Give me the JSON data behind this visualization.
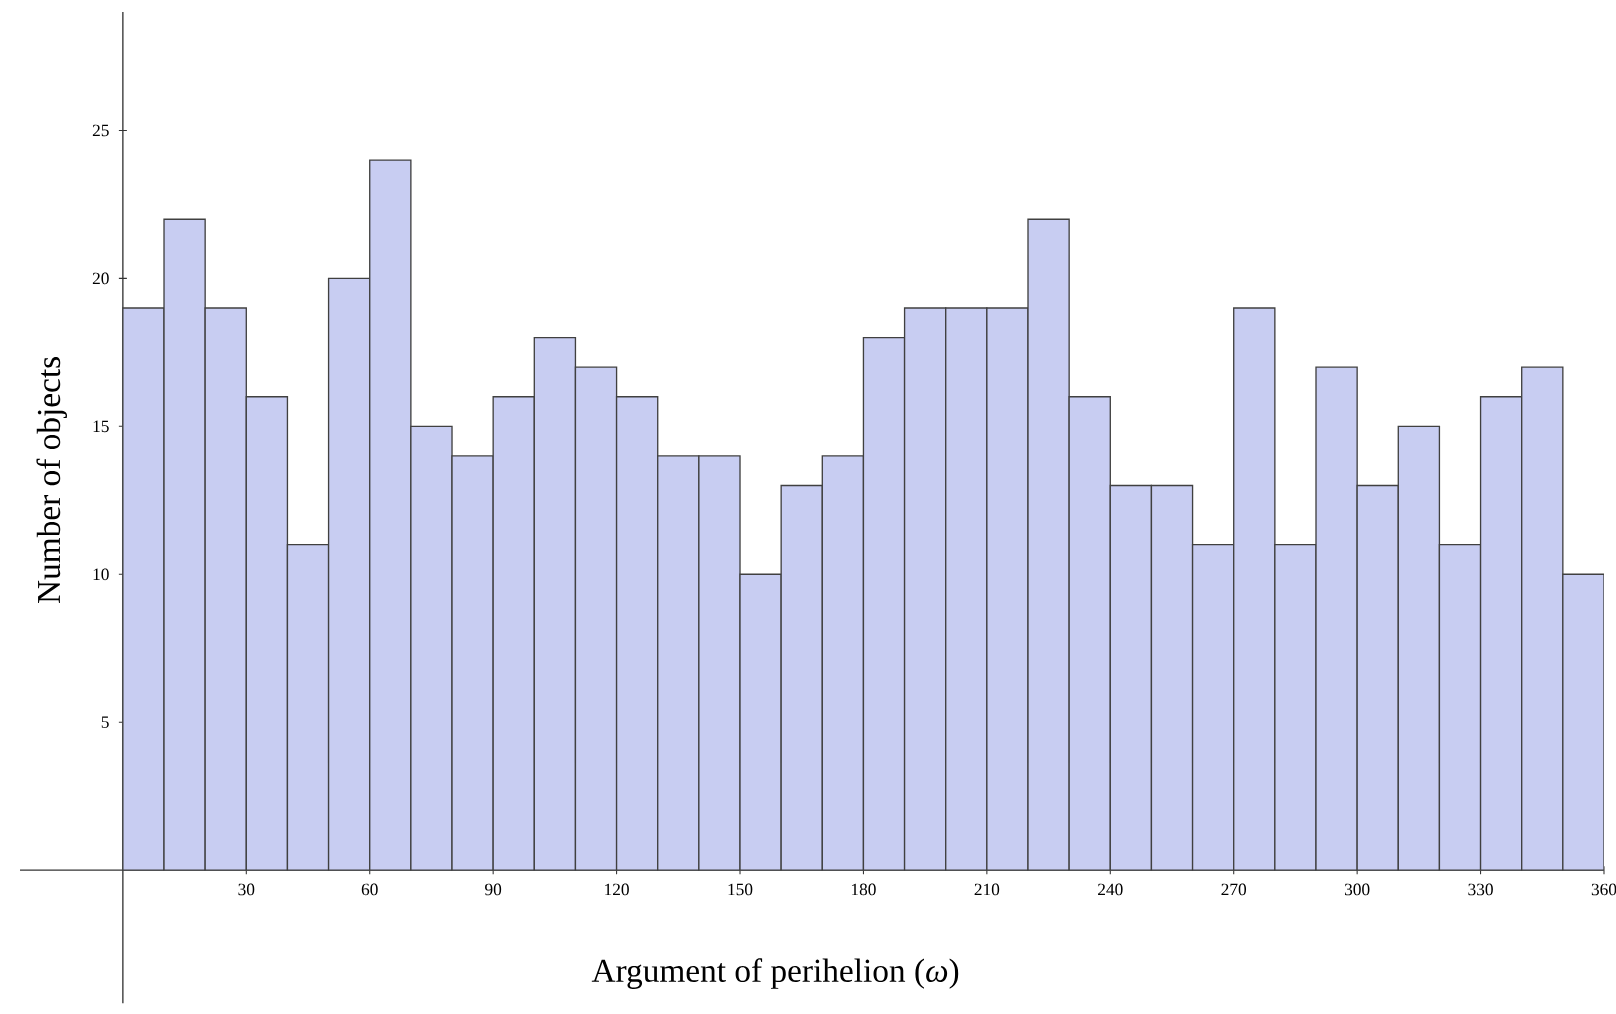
{
  "chart_data": {
    "type": "histogram",
    "xlabel": "Argument of perihelion (*ω*)",
    "ylabel": "Number of objects",
    "bins": [
      0,
      10,
      20,
      30,
      40,
      50,
      60,
      70,
      80,
      90,
      100,
      110,
      120,
      130,
      140,
      150,
      160,
      170,
      180,
      190,
      200,
      210,
      220,
      230,
      240,
      250,
      260,
      270,
      280,
      290,
      300,
      310,
      320,
      330,
      340,
      350,
      360
    ],
    "values": [
      19,
      22,
      19,
      16,
      11,
      20,
      24,
      15,
      14,
      16,
      18,
      17,
      16,
      14,
      14,
      10,
      13,
      14,
      18,
      19,
      19,
      19,
      22,
      16,
      13,
      13,
      11,
      19,
      11,
      17,
      13,
      15,
      11,
      16,
      17,
      10
    ],
    "color": "#c8cdf2",
    "xlim": [
      -25,
      360
    ],
    "ylim": [
      -4.5,
      29
    ],
    "xticks": [
      30,
      60,
      90,
      120,
      150,
      180,
      210,
      240,
      270,
      300,
      330,
      360
    ],
    "yticks": [
      5,
      10,
      15,
      20,
      25
    ],
    "grid": false
  }
}
